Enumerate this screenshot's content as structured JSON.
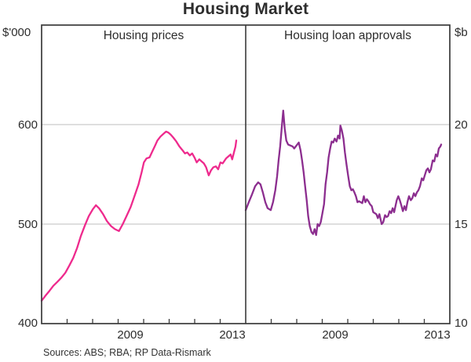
{
  "header": {
    "title": "Housing Market"
  },
  "left_panel": {
    "title": "Housing prices",
    "unit": "$'000",
    "y_labels": [
      "600",
      "500",
      "400"
    ],
    "x_labels": [
      "2009",
      "2013"
    ]
  },
  "right_panel": {
    "title": "Housing loan approvals",
    "unit": "$b",
    "y_labels": [
      "20",
      "15",
      "10"
    ],
    "x_labels": [
      "2009",
      "2013"
    ]
  },
  "footer": {
    "sources": "Sources: ABS; RBA; RP Data-Rismark"
  },
  "colors": {
    "prices_line": "#ee2a8d",
    "approvals_line": "#8c2e8f",
    "grid": "#c9c9c9",
    "frame": "#3a3a3a",
    "text": "#2d2d2d"
  },
  "chart_data": [
    {
      "type": "line",
      "panel": "left",
      "title": "Housing prices",
      "ylabel": "$'000",
      "x_range": [
        2006,
        2014
      ],
      "y_range": [
        400,
        700
      ],
      "y_gridlines": [
        500,
        600
      ],
      "y_tick_values": [
        400,
        500,
        600
      ],
      "x_tick_years": [
        2007,
        2008,
        2009,
        2010,
        2011,
        2012,
        2013
      ],
      "x_label_positions": [
        {
          "text": "2009",
          "year": 2009.5
        },
        {
          "text": "2013",
          "year": 2013.5
        }
      ],
      "grid": true,
      "legend": "none",
      "series": [
        {
          "name": "Housing prices",
          "id": "housing-prices-line",
          "color": "#ee2a8d",
          "points": [
            [
              2006.0,
              423
            ],
            [
              2006.15,
              428
            ],
            [
              2006.31,
              433
            ],
            [
              2006.46,
              438
            ],
            [
              2006.62,
              442
            ],
            [
              2006.77,
              446
            ],
            [
              2006.93,
              451
            ],
            [
              2007.08,
              458
            ],
            [
              2007.24,
              466
            ],
            [
              2007.39,
              476
            ],
            [
              2007.54,
              488
            ],
            [
              2007.7,
              499
            ],
            [
              2007.85,
              508
            ],
            [
              2008.01,
              515
            ],
            [
              2008.13,
              519
            ],
            [
              2008.25,
              516
            ],
            [
              2008.41,
              510
            ],
            [
              2008.56,
              503
            ],
            [
              2008.72,
              498
            ],
            [
              2008.87,
              495
            ],
            [
              2009.03,
              493
            ],
            [
              2009.18,
              500
            ],
            [
              2009.33,
              508
            ],
            [
              2009.49,
              517
            ],
            [
              2009.64,
              528
            ],
            [
              2009.8,
              540
            ],
            [
              2009.92,
              552
            ],
            [
              2010.01,
              562
            ],
            [
              2010.11,
              566
            ],
            [
              2010.23,
              567
            ],
            [
              2010.32,
              572
            ],
            [
              2010.45,
              579
            ],
            [
              2010.54,
              584
            ],
            [
              2010.66,
              588
            ],
            [
              2010.79,
              591
            ],
            [
              2010.88,
              593
            ],
            [
              2010.97,
              592
            ],
            [
              2011.06,
              590
            ],
            [
              2011.16,
              587
            ],
            [
              2011.28,
              583
            ],
            [
              2011.4,
              578
            ],
            [
              2011.53,
              574
            ],
            [
              2011.62,
              571
            ],
            [
              2011.71,
              572
            ],
            [
              2011.81,
              569
            ],
            [
              2011.9,
              571
            ],
            [
              2011.99,
              567
            ],
            [
              2012.08,
              562
            ],
            [
              2012.18,
              565
            ],
            [
              2012.27,
              563
            ],
            [
              2012.36,
              561
            ],
            [
              2012.45,
              557
            ],
            [
              2012.55,
              549
            ],
            [
              2012.64,
              554
            ],
            [
              2012.73,
              557
            ],
            [
              2012.83,
              558
            ],
            [
              2012.92,
              555
            ],
            [
              2013.01,
              562
            ],
            [
              2013.1,
              561
            ],
            [
              2013.23,
              566
            ],
            [
              2013.32,
              568
            ],
            [
              2013.41,
              570
            ],
            [
              2013.47,
              565
            ],
            [
              2013.53,
              571
            ],
            [
              2013.6,
              578
            ],
            [
              2013.63,
              584
            ]
          ]
        }
      ]
    },
    {
      "type": "line",
      "panel": "right",
      "title": "Housing loan approvals",
      "ylabel": "$b",
      "x_range": [
        2006,
        2014
      ],
      "y_range": [
        10,
        25
      ],
      "y_gridlines": [
        15,
        20
      ],
      "y_tick_values": [
        10,
        15,
        20
      ],
      "x_tick_years": [
        2007,
        2008,
        2009,
        2010,
        2011,
        2012,
        2013
      ],
      "x_label_positions": [
        {
          "text": "2009",
          "year": 2009.5
        },
        {
          "text": "2013",
          "year": 2013.5
        }
      ],
      "grid": true,
      "legend": "none",
      "series": [
        {
          "name": "Housing loan approvals",
          "id": "housing-loan-approvals-line",
          "color": "#8c2e8f",
          "points": [
            [
              2006.0,
              15.7
            ],
            [
              2006.12,
              16.1
            ],
            [
              2006.25,
              16.5
            ],
            [
              2006.37,
              16.9
            ],
            [
              2006.49,
              17.1
            ],
            [
              2006.58,
              17.0
            ],
            [
              2006.67,
              16.6
            ],
            [
              2006.77,
              16.1
            ],
            [
              2006.86,
              15.8
            ],
            [
              2006.98,
              15.7
            ],
            [
              2007.07,
              16.1
            ],
            [
              2007.16,
              16.7
            ],
            [
              2007.23,
              17.4
            ],
            [
              2007.29,
              18.2
            ],
            [
              2007.35,
              18.9
            ],
            [
              2007.41,
              19.8
            ],
            [
              2007.47,
              20.7
            ],
            [
              2007.53,
              19.8
            ],
            [
              2007.59,
              19.2
            ],
            [
              2007.66,
              19.0
            ],
            [
              2007.75,
              18.95
            ],
            [
              2007.84,
              18.9
            ],
            [
              2007.9,
              18.8
            ],
            [
              2007.99,
              18.95
            ],
            [
              2008.08,
              19.1
            ],
            [
              2008.15,
              18.7
            ],
            [
              2008.21,
              18.2
            ],
            [
              2008.27,
              17.6
            ],
            [
              2008.33,
              16.9
            ],
            [
              2008.39,
              16.2
            ],
            [
              2008.45,
              15.4
            ],
            [
              2008.51,
              14.9
            ],
            [
              2008.58,
              14.6
            ],
            [
              2008.64,
              14.5
            ],
            [
              2008.7,
              14.75
            ],
            [
              2008.76,
              14.45
            ],
            [
              2008.82,
              15.0
            ],
            [
              2008.88,
              14.9
            ],
            [
              2008.94,
              15.1
            ],
            [
              2009.0,
              15.5
            ],
            [
              2009.07,
              16.0
            ],
            [
              2009.13,
              17.0
            ],
            [
              2009.19,
              17.6
            ],
            [
              2009.25,
              18.35
            ],
            [
              2009.31,
              18.8
            ],
            [
              2009.37,
              19.15
            ],
            [
              2009.43,
              19.1
            ],
            [
              2009.49,
              19.3
            ],
            [
              2009.56,
              19.15
            ],
            [
              2009.62,
              19.45
            ],
            [
              2009.68,
              19.3
            ],
            [
              2009.71,
              19.95
            ],
            [
              2009.77,
              19.7
            ],
            [
              2009.83,
              19.3
            ],
            [
              2009.89,
              18.6
            ],
            [
              2009.95,
              18.0
            ],
            [
              2010.02,
              17.4
            ],
            [
              2010.08,
              16.9
            ],
            [
              2010.14,
              16.7
            ],
            [
              2010.2,
              16.75
            ],
            [
              2010.26,
              16.6
            ],
            [
              2010.32,
              16.4
            ],
            [
              2010.38,
              16.1
            ],
            [
              2010.44,
              16.15
            ],
            [
              2010.51,
              16.1
            ],
            [
              2010.57,
              16.05
            ],
            [
              2010.63,
              16.4
            ],
            [
              2010.69,
              16.1
            ],
            [
              2010.75,
              16.25
            ],
            [
              2010.81,
              16.15
            ],
            [
              2010.87,
              16.0
            ],
            [
              2010.94,
              15.9
            ],
            [
              2011.0,
              15.6
            ],
            [
              2011.06,
              15.55
            ],
            [
              2011.12,
              15.5
            ],
            [
              2011.18,
              15.3
            ],
            [
              2011.24,
              15.5
            ],
            [
              2011.33,
              15.0
            ],
            [
              2011.39,
              15.1
            ],
            [
              2011.46,
              15.45
            ],
            [
              2011.52,
              15.35
            ],
            [
              2011.58,
              15.4
            ],
            [
              2011.64,
              15.65
            ],
            [
              2011.7,
              15.55
            ],
            [
              2011.76,
              15.8
            ],
            [
              2011.82,
              15.6
            ],
            [
              2011.92,
              16.2
            ],
            [
              2011.98,
              16.4
            ],
            [
              2012.04,
              16.2
            ],
            [
              2012.1,
              15.95
            ],
            [
              2012.16,
              15.65
            ],
            [
              2012.22,
              15.9
            ],
            [
              2012.28,
              15.7
            ],
            [
              2012.34,
              16.1
            ],
            [
              2012.4,
              16.4
            ],
            [
              2012.47,
              16.2
            ],
            [
              2012.53,
              16.3
            ],
            [
              2012.59,
              16.55
            ],
            [
              2012.65,
              16.4
            ],
            [
              2012.71,
              16.6
            ],
            [
              2012.77,
              16.7
            ],
            [
              2012.83,
              16.9
            ],
            [
              2012.9,
              17.3
            ],
            [
              2012.96,
              17.2
            ],
            [
              2013.02,
              17.45
            ],
            [
              2013.08,
              17.7
            ],
            [
              2013.14,
              17.8
            ],
            [
              2013.2,
              17.6
            ],
            [
              2013.26,
              17.75
            ],
            [
              2013.33,
              18.2
            ],
            [
              2013.39,
              18.15
            ],
            [
              2013.45,
              18.5
            ],
            [
              2013.51,
              18.4
            ],
            [
              2013.57,
              18.8
            ],
            [
              2013.63,
              18.9
            ],
            [
              2013.66,
              19.0
            ]
          ]
        }
      ]
    }
  ]
}
